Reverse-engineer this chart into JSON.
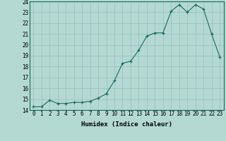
{
  "x": [
    0,
    1,
    2,
    3,
    4,
    5,
    6,
    7,
    8,
    9,
    10,
    11,
    12,
    13,
    14,
    15,
    16,
    17,
    18,
    19,
    20,
    21,
    22,
    23
  ],
  "y": [
    14.3,
    14.3,
    14.9,
    14.6,
    14.6,
    14.7,
    14.7,
    14.8,
    15.1,
    15.5,
    16.7,
    18.3,
    18.5,
    19.5,
    20.8,
    21.1,
    21.1,
    23.1,
    23.7,
    23.0,
    23.7,
    23.3,
    21.0,
    18.9
  ],
  "xlabel": "Humidex (Indice chaleur)",
  "ylabel": "",
  "xlim": [
    -0.5,
    23.5
  ],
  "ylim": [
    14,
    24
  ],
  "yticks": [
    14,
    15,
    16,
    17,
    18,
    19,
    20,
    21,
    22,
    23,
    24
  ],
  "xticks": [
    0,
    1,
    2,
    3,
    4,
    5,
    6,
    7,
    8,
    9,
    10,
    11,
    12,
    13,
    14,
    15,
    16,
    17,
    18,
    19,
    20,
    21,
    22,
    23
  ],
  "line_color": "#1a6b5a",
  "marker_color": "#1a6b5a",
  "bg_color": "#b3d9d2",
  "grid_color": "#9bbfba",
  "label_fontsize": 6.5,
  "tick_fontsize": 5.5
}
